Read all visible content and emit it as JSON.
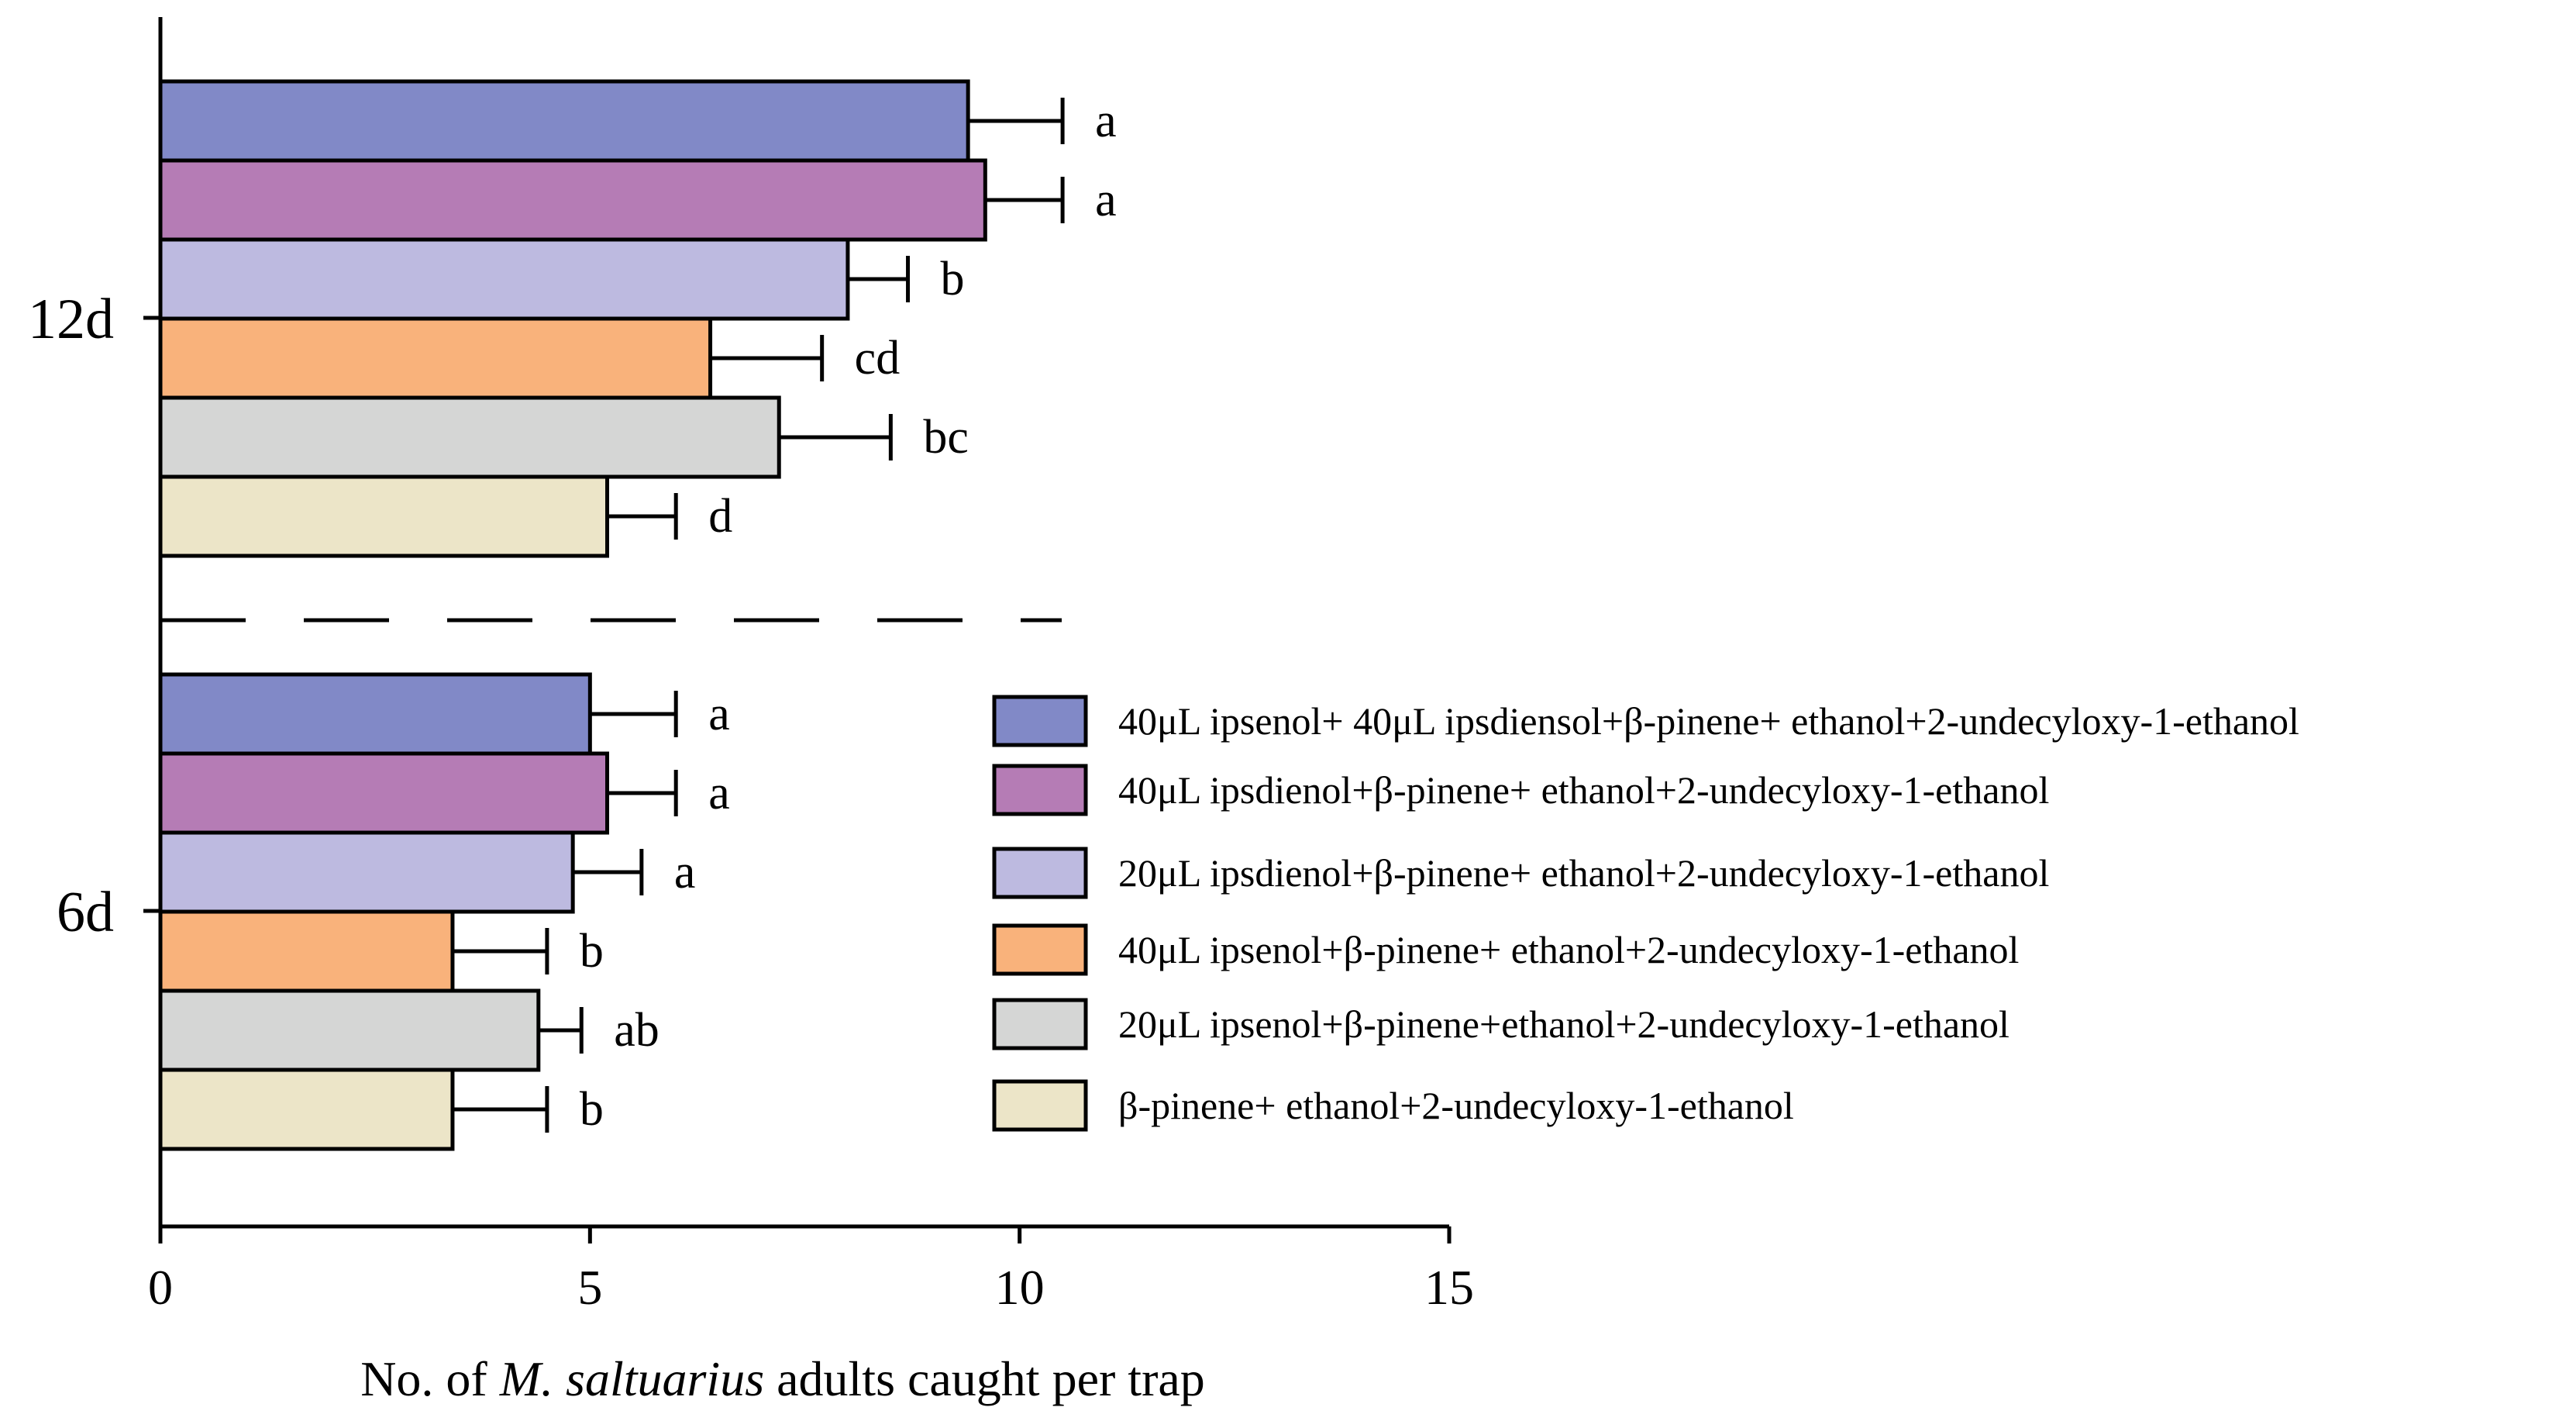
{
  "chart_data": {
    "type": "bar",
    "orientation": "horizontal",
    "xlabel": {
      "prefix": "No. of ",
      "italic": "M. saltuarius",
      "suffix": " adults caught per trap"
    },
    "xlim": [
      0,
      15
    ],
    "xticks": [
      "0",
      "5",
      "10",
      "15"
    ],
    "categories": [
      "12d",
      "6d"
    ],
    "series": [
      {
        "name": "40μL ipsenol+ 40μL ipsdiensol+β-pinene+ ethanol+2-undecyloxy-1-ethanol",
        "color": "#8189c7",
        "values": [
          9.4,
          5.0
        ],
        "errors": [
          1.1,
          1.0
        ],
        "letters": [
          "a",
          "a"
        ]
      },
      {
        "name": "40μL ipsdienol+β-pinene+ ethanol+2-undecyloxy-1-ethanol",
        "color": "#b57cb5",
        "values": [
          9.6,
          5.2
        ],
        "errors": [
          0.9,
          0.8
        ],
        "letters": [
          "a",
          "a"
        ]
      },
      {
        "name": "20μL ipsdienol+β-pinene+ ethanol+2-undecyloxy-1-ethanol",
        "color": "#bdbae0",
        "values": [
          8.0,
          4.8
        ],
        "errors": [
          0.7,
          0.8
        ],
        "letters": [
          "b",
          "a"
        ]
      },
      {
        "name": "40μL ipsenol+β-pinene+ ethanol+2-undecyloxy-1-ethanol",
        "color": "#f9b27b",
        "values": [
          6.4,
          3.4
        ],
        "errors": [
          1.3,
          1.1
        ],
        "letters": [
          "cd",
          "b"
        ]
      },
      {
        "name": "20μL ipsenol+β-pinene+ethanol+2-undecyloxy-1-ethanol",
        "color": "#d5d6d5",
        "values": [
          7.2,
          4.4
        ],
        "errors": [
          1.3,
          0.5
        ],
        "letters": [
          "bc",
          "ab"
        ]
      },
      {
        "name": " β-pinene+ ethanol+2-undecyloxy-1-ethanol",
        "color": "#ece5c8",
        "values": [
          5.2,
          3.4
        ],
        "errors": [
          0.8,
          1.1
        ],
        "letters": [
          "d",
          "b"
        ]
      }
    ],
    "legend": "right",
    "grid": false
  }
}
